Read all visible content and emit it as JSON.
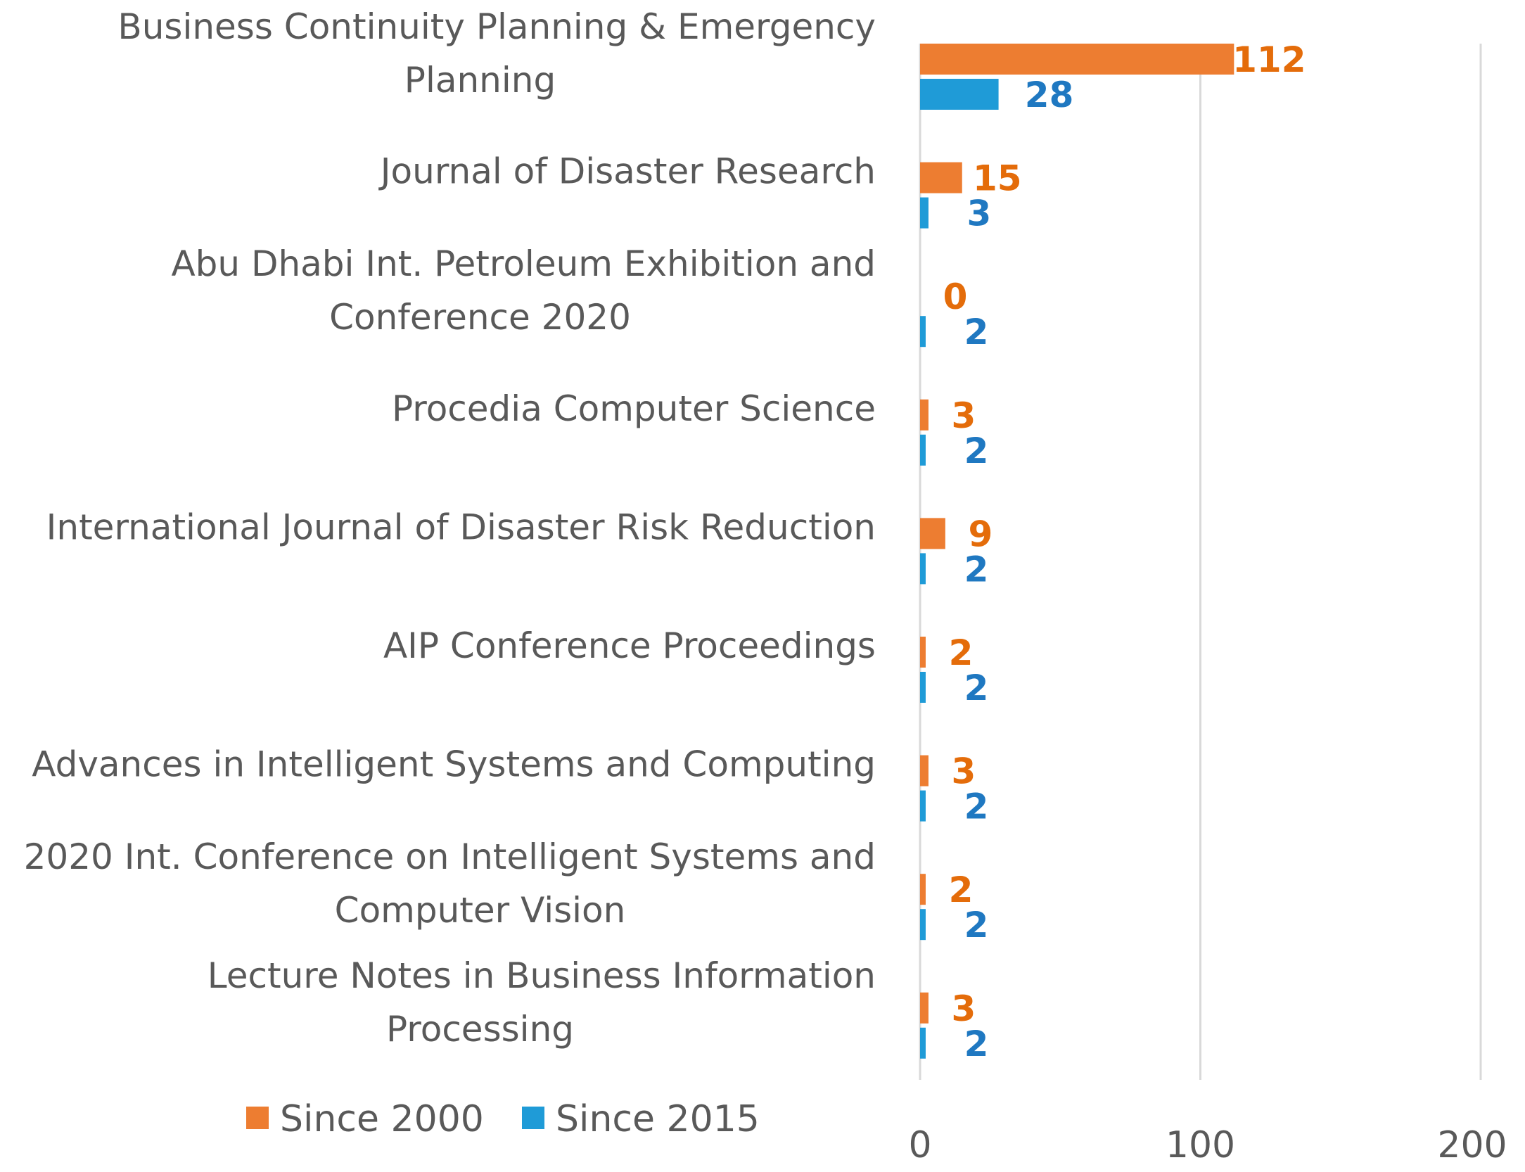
{
  "chart_data": {
    "type": "bar",
    "orientation": "horizontal",
    "title": "",
    "xlabel": "",
    "ylabel": "",
    "xlim": [
      0,
      200
    ],
    "xticks": [
      0,
      100,
      200
    ],
    "tick_labels": [
      "0",
      "100",
      "200"
    ],
    "grid": true,
    "legend_position": "bottom-left",
    "categories": [
      [
        "Business Continuity Planning & Emergency",
        "Planning"
      ],
      [
        "Journal of Disaster Research"
      ],
      [
        "Abu Dhabi Int. Petroleum Exhibition and",
        "Conference 2020"
      ],
      [
        "Procedia Computer Science"
      ],
      [
        "International Journal of Disaster Risk Reduction"
      ],
      [
        "AIP Conference Proceedings"
      ],
      [
        "Advances in Intelligent Systems and Computing"
      ],
      [
        "2020 Int. Conference on Intelligent Systems and",
        "Computer Vision"
      ],
      [
        "Lecture Notes in Business Information",
        "Processing"
      ]
    ],
    "series": [
      {
        "name": "Since 2000",
        "color": "#ED7D31",
        "label_color": "#E46C0A",
        "values": [
          112,
          15,
          0,
          3,
          9,
          2,
          3,
          2,
          3
        ]
      },
      {
        "name": "Since 2015",
        "color": "#1F9BD7",
        "label_color": "#1F78C1",
        "values": [
          28,
          3,
          2,
          2,
          2,
          2,
          2,
          2,
          2
        ]
      }
    ]
  },
  "colors": {
    "gridline": "#D9D9D9",
    "text": "#595959",
    "background": "#FFFFFF"
  }
}
